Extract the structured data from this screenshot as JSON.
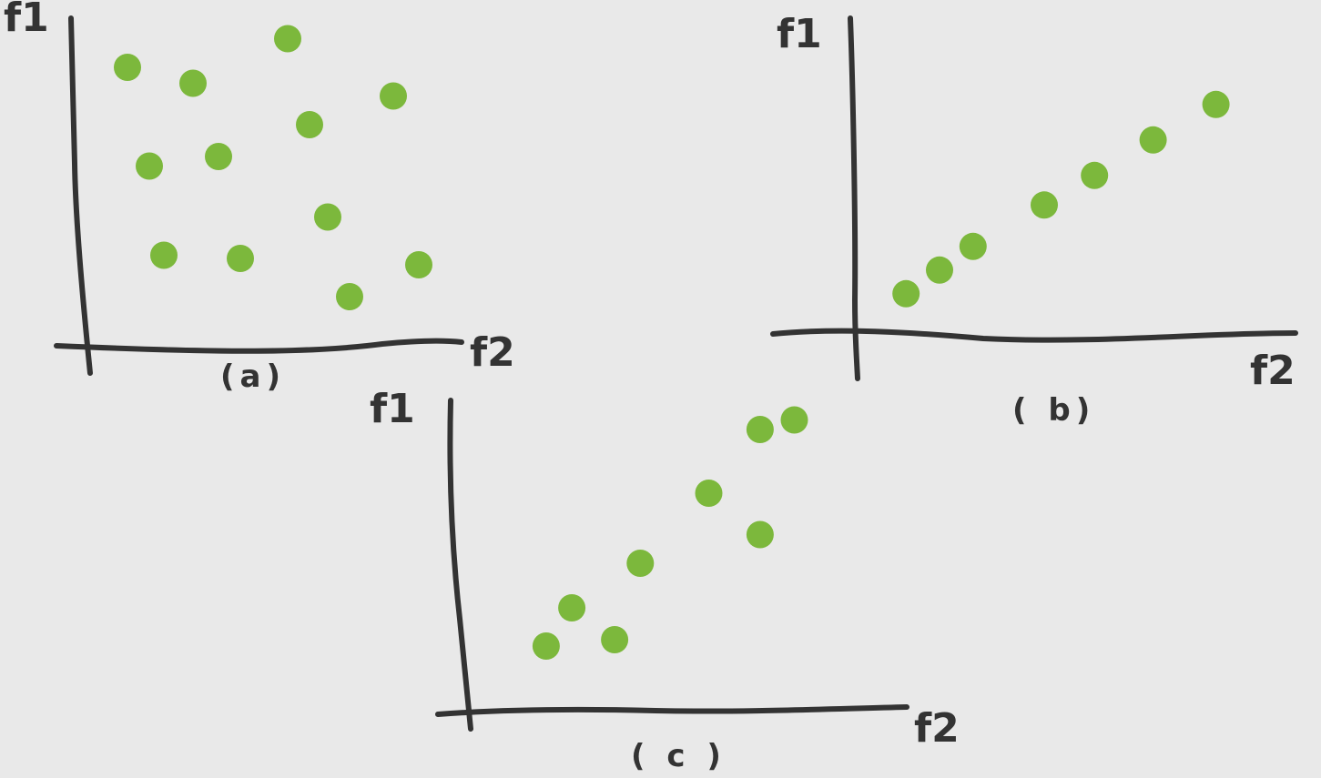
{
  "colors": {
    "background": "#e9e9e9",
    "ink": "#333333",
    "point": "#7cb83c"
  },
  "chart_data": [
    {
      "type": "scatter",
      "panel_label": "(a)",
      "xlabel": "f2",
      "ylabel": "f1",
      "xlim": [
        0,
        10
      ],
      "ylim": [
        0,
        10
      ],
      "grid": false,
      "series": [
        {
          "x": [
            1.0,
            2.8,
            5.4,
            8.3,
            6.0,
            1.6,
            3.5,
            6.5,
            2.0,
            4.1,
            7.1,
            9.0
          ],
          "y": [
            8.6,
            8.1,
            9.5,
            7.7,
            6.8,
            5.5,
            5.8,
            3.9,
            2.7,
            2.6,
            1.4,
            2.4
          ]
        }
      ]
    },
    {
      "type": "scatter",
      "panel_label": "( b)",
      "xlabel": "f2",
      "ylabel": "f1",
      "xlim": [
        0,
        10
      ],
      "ylim": [
        0,
        10
      ],
      "grid": false,
      "series": [
        {
          "x": [
            1.2,
            2.0,
            2.8,
            4.5,
            5.7,
            7.1,
            8.6
          ],
          "y": [
            1.3,
            2.1,
            2.9,
            4.3,
            5.3,
            6.5,
            7.7
          ]
        }
      ]
    },
    {
      "type": "scatter",
      "panel_label": "( c )",
      "xlabel": "f2",
      "ylabel": "f1",
      "xlim": [
        0,
        10
      ],
      "ylim": [
        0,
        10
      ],
      "grid": false,
      "series": [
        {
          "x": [
            1.7,
            2.3,
            3.3,
            3.9,
            5.5,
            6.7,
            6.7,
            7.5
          ],
          "y": [
            2.0,
            3.2,
            2.2,
            4.6,
            6.8,
            5.5,
            8.8,
            9.1
          ]
        }
      ]
    }
  ]
}
